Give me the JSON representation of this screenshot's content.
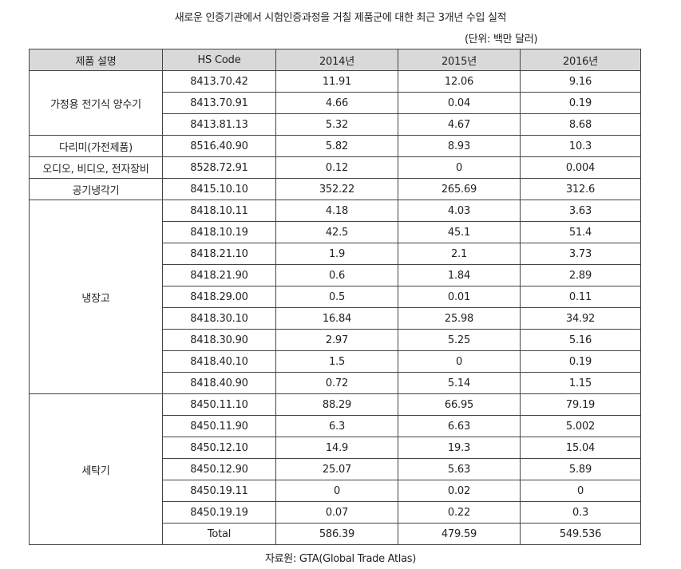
{
  "title": "새로운 인증기관에서 시험인증과정을 거칠 제품군에 대한 최근 3개년 수입 실적",
  "unit": "(단위: 백만 달러)",
  "source": "자료원: GTA(Global Trade Atlas)",
  "table": {
    "headers": [
      "제품 설명",
      "HS Code",
      "2014년",
      "2015년",
      "2016년"
    ],
    "groups": [
      {
        "product": "가정용 전기식 양수기",
        "rows": [
          {
            "code": "8413.70.42",
            "y2014": "11.91",
            "y2015": "12.06",
            "y2016": "9.16"
          },
          {
            "code": "8413.70.91",
            "y2014": "4.66",
            "y2015": "0.04",
            "y2016": "0.19"
          },
          {
            "code": "8413.81.13",
            "y2014": "5.32",
            "y2015": "4.67",
            "y2016": "8.68"
          }
        ]
      },
      {
        "product": "다리미(가전제품)",
        "rows": [
          {
            "code": "8516.40.90",
            "y2014": "5.82",
            "y2015": "8.93",
            "y2016": "10.3"
          }
        ]
      },
      {
        "product": "오디오, 비디오, 전자장비",
        "rows": [
          {
            "code": "8528.72.91",
            "y2014": "0.12",
            "y2015": "0",
            "y2016": "0.004"
          }
        ]
      },
      {
        "product": "공기냉각기",
        "rows": [
          {
            "code": "8415.10.10",
            "y2014": "352.22",
            "y2015": "265.69",
            "y2016": "312.6"
          }
        ]
      },
      {
        "product": "냉장고",
        "rows": [
          {
            "code": "8418.10.11",
            "y2014": "4.18",
            "y2015": "4.03",
            "y2016": "3.63"
          },
          {
            "code": "8418.10.19",
            "y2014": "42.5",
            "y2015": "45.1",
            "y2016": "51.4"
          },
          {
            "code": "8418.21.10",
            "y2014": "1.9",
            "y2015": "2.1",
            "y2016": "3.73"
          },
          {
            "code": "8418.21.90",
            "y2014": "0.6",
            "y2015": "1.84",
            "y2016": "2.89"
          },
          {
            "code": "8418.29.00",
            "y2014": "0.5",
            "y2015": "0.01",
            "y2016": "0.11"
          },
          {
            "code": "8418.30.10",
            "y2014": "16.84",
            "y2015": "25.98",
            "y2016": "34.92"
          },
          {
            "code": "8418.30.90",
            "y2014": "2.97",
            "y2015": "5.25",
            "y2016": "5.16"
          },
          {
            "code": "8418.40.10",
            "y2014": "1.5",
            "y2015": "0",
            "y2016": "0.19"
          },
          {
            "code": "8418.40.90",
            "y2014": "0.72",
            "y2015": "5.14",
            "y2016": "1.15"
          }
        ]
      },
      {
        "product": "세탁기",
        "rows": [
          {
            "code": "8450.11.10",
            "y2014": "88.29",
            "y2015": "66.95",
            "y2016": "79.19"
          },
          {
            "code": "8450.11.90",
            "y2014": "6.3",
            "y2015": "6.63",
            "y2016": "5.002"
          },
          {
            "code": "8450.12.10",
            "y2014": "14.9",
            "y2015": "19.3",
            "y2016": "15.04"
          },
          {
            "code": "8450.12.90",
            "y2014": "25.07",
            "y2015": "5.63",
            "y2016": "5.89"
          },
          {
            "code": "8450.19.11",
            "y2014": "0",
            "y2015": "0.02",
            "y2016": "0"
          },
          {
            "code": "8450.19.19",
            "y2014": "0.07",
            "y2015": "0.22",
            "y2016": "0.3"
          },
          {
            "code": "Total",
            "y2014": "586.39",
            "y2015": "479.59",
            "y2016": "549.536"
          }
        ]
      }
    ]
  }
}
